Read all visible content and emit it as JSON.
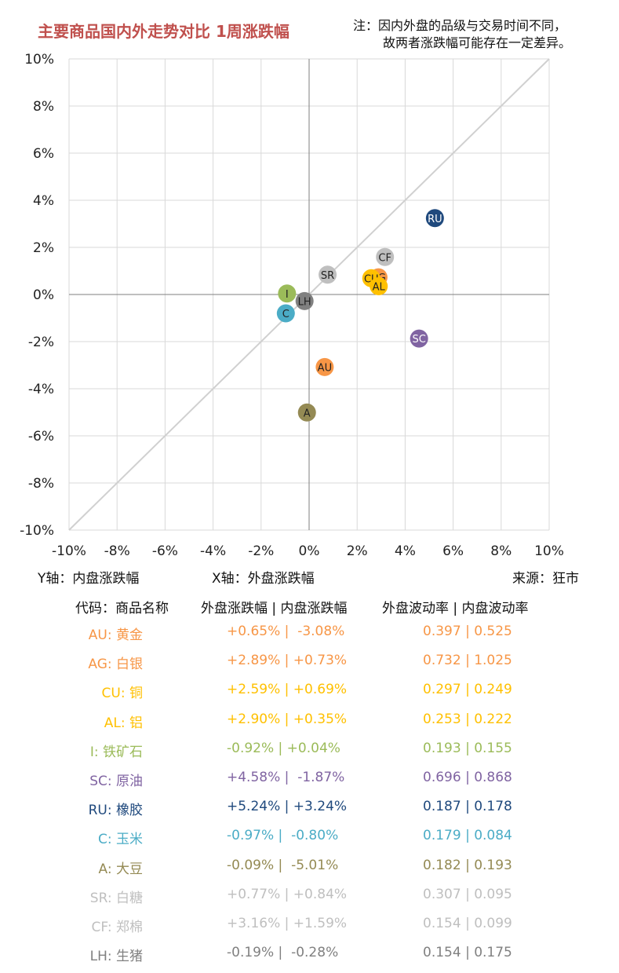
{
  "title": "主要商品国内外走势对比 1周涨跌幅",
  "note": {
    "line1": "注：因内外盘的品级与交易时间不同，",
    "line2": "故两者涨跌幅可能存在一定差异。"
  },
  "axis_info": {
    "y_label": "Y轴：内盘涨跌幅",
    "x_label": "X轴：外盘涨跌幅",
    "source": "来源：狂市"
  },
  "table_header": {
    "name": "代码：商品名称",
    "change": "外盘涨跌幅 | 内盘涨跌幅",
    "vol": "外盘波动率 | 内盘波动率"
  },
  "table_rows": [
    {
      "name": "AU: 黄金",
      "change": "+0.65% |  -3.08%",
      "vol": "0.397 | 0.525",
      "color": "#f79646"
    },
    {
      "name": "AG: 白银",
      "change": "+2.89% | +0.73%",
      "vol": "0.732 | 1.025",
      "color": "#f79646"
    },
    {
      "name": "CU: 铜",
      "change": "+2.59% | +0.69%",
      "vol": "0.297 | 0.249",
      "color": "#ffc000"
    },
    {
      "name": "AL: 铝",
      "change": "+2.90% | +0.35%",
      "vol": "0.253 | 0.222",
      "color": "#ffc000"
    },
    {
      "name": "I: 铁矿石",
      "change": "-0.92% | +0.04%",
      "vol": "0.193 | 0.155",
      "color": "#9bbb59"
    },
    {
      "name": "SC: 原油",
      "change": "+4.58% |  -1.87%",
      "vol": "0.696 | 0.868",
      "color": "#8064a2"
    },
    {
      "name": "RU: 橡胶",
      "change": "+5.24% | +3.24%",
      "vol": "0.187 | 0.178",
      "color": "#1f497d"
    },
    {
      "name": "C: 玉米",
      "change": "-0.97% |  -0.80%",
      "vol": "0.179 | 0.084",
      "color": "#4bacc6"
    },
    {
      "name": "A: 大豆",
      "change": "-0.09% |  -5.01%",
      "vol": "0.182 | 0.193",
      "color": "#948a54"
    },
    {
      "name": "SR: 白糖",
      "change": "+0.77% | +0.84%",
      "vol": "0.307 | 0.095",
      "color": "#bfbfbf"
    },
    {
      "name": "CF: 郑棉",
      "change": "+3.16% | +1.59%",
      "vol": "0.154 | 0.099",
      "color": "#bfbfbf"
    },
    {
      "name": "LH: 生猪",
      "change": "-0.19% |  -0.28%",
      "vol": "0.154 | 0.175",
      "color": "#808080"
    }
  ],
  "chart_data": {
    "type": "scatter",
    "title": "主要商品国内外走势对比 1周涨跌幅",
    "xlabel": "外盘涨跌幅",
    "ylabel": "内盘涨跌幅",
    "xlim": [
      -10,
      10
    ],
    "ylim": [
      -10,
      10
    ],
    "x_ticks": [
      "-10%",
      "-8%",
      "-6%",
      "-4%",
      "-2%",
      "0%",
      "2%",
      "4%",
      "6%",
      "8%",
      "10%"
    ],
    "y_ticks": [
      "10%",
      "8%",
      "6%",
      "4%",
      "2%",
      "0%",
      "-2%",
      "-4%",
      "-6%",
      "-8%",
      "-10%"
    ],
    "grid": true,
    "reference_line": "y = x",
    "points": [
      {
        "label": "AU",
        "x": 0.65,
        "y": -3.08,
        "color": "#f79646"
      },
      {
        "label": "AG",
        "x": 2.89,
        "y": 0.73,
        "color": "#f79646"
      },
      {
        "label": "CU",
        "x": 2.59,
        "y": 0.69,
        "color": "#ffc000"
      },
      {
        "label": "AL",
        "x": 2.9,
        "y": 0.35,
        "color": "#ffc000"
      },
      {
        "label": "I",
        "x": -0.92,
        "y": 0.04,
        "color": "#9bbb59"
      },
      {
        "label": "SC",
        "x": 4.58,
        "y": -1.87,
        "color": "#8064a2"
      },
      {
        "label": "RU",
        "x": 5.24,
        "y": 3.24,
        "color": "#1f497d"
      },
      {
        "label": "C",
        "x": -0.97,
        "y": -0.8,
        "color": "#4bacc6"
      },
      {
        "label": "A",
        "x": -0.09,
        "y": -5.01,
        "color": "#948a54"
      },
      {
        "label": "SR",
        "x": 0.77,
        "y": 0.84,
        "color": "#bfbfbf"
      },
      {
        "label": "CF",
        "x": 3.16,
        "y": 1.59,
        "color": "#bfbfbf"
      },
      {
        "label": "LH",
        "x": -0.19,
        "y": -0.28,
        "color": "#808080"
      }
    ]
  }
}
